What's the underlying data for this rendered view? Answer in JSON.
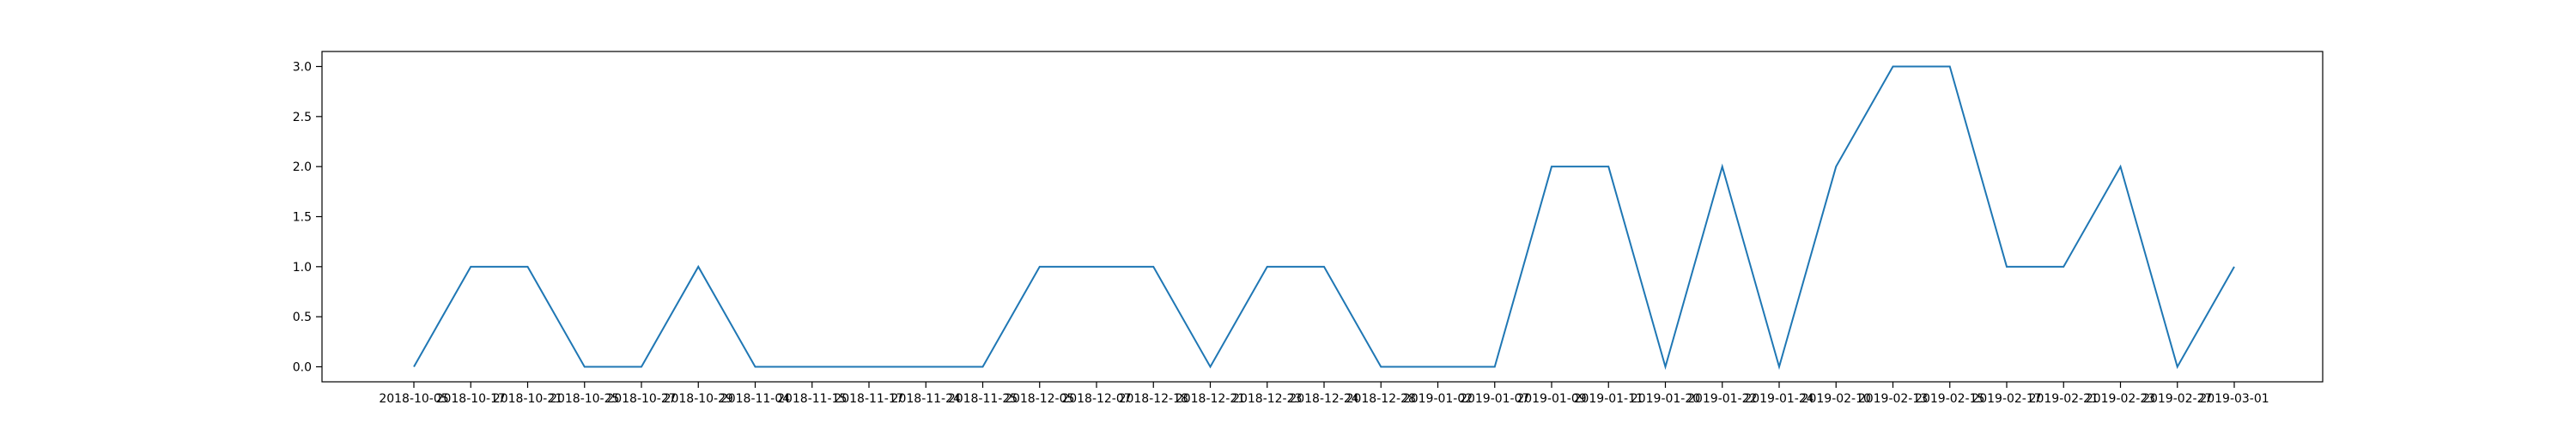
{
  "chart_data": {
    "type": "line",
    "x": [
      "2018-10-05",
      "2018-10-17",
      "2018-10-21",
      "2018-10-25",
      "2018-10-27",
      "2018-10-29",
      "2018-11-04",
      "2018-11-15",
      "2018-11-17",
      "2018-11-24",
      "2018-11-25",
      "2018-12-05",
      "2018-12-07",
      "2018-12-18",
      "2018-12-21",
      "2018-12-23",
      "2018-12-24",
      "2018-12-28",
      "2019-01-02",
      "2019-01-07",
      "2019-01-09",
      "2019-01-11",
      "2019-01-20",
      "2019-01-22",
      "2019-01-24",
      "2019-02-10",
      "2019-02-13",
      "2019-02-15",
      "2019-02-17",
      "2019-02-21",
      "2019-02-23",
      "2019-02-27",
      "2019-03-01"
    ],
    "series": [
      {
        "values": [
          0,
          1,
          1,
          0,
          0,
          1,
          0,
          0,
          0,
          0,
          0,
          1,
          1,
          1,
          0,
          1,
          1,
          0,
          0,
          0,
          2,
          2,
          0,
          2,
          0,
          2,
          3,
          3,
          1,
          1,
          2,
          0,
          1
        ]
      }
    ],
    "yticks": [
      "0.0",
      "0.5",
      "1.0",
      "1.5",
      "2.0",
      "2.5",
      "3.0"
    ],
    "ylim": [
      -0.15,
      3.15
    ],
    "title": "",
    "xlabel": "",
    "ylabel": "",
    "grid": false,
    "line_color": "#1f77b4"
  }
}
